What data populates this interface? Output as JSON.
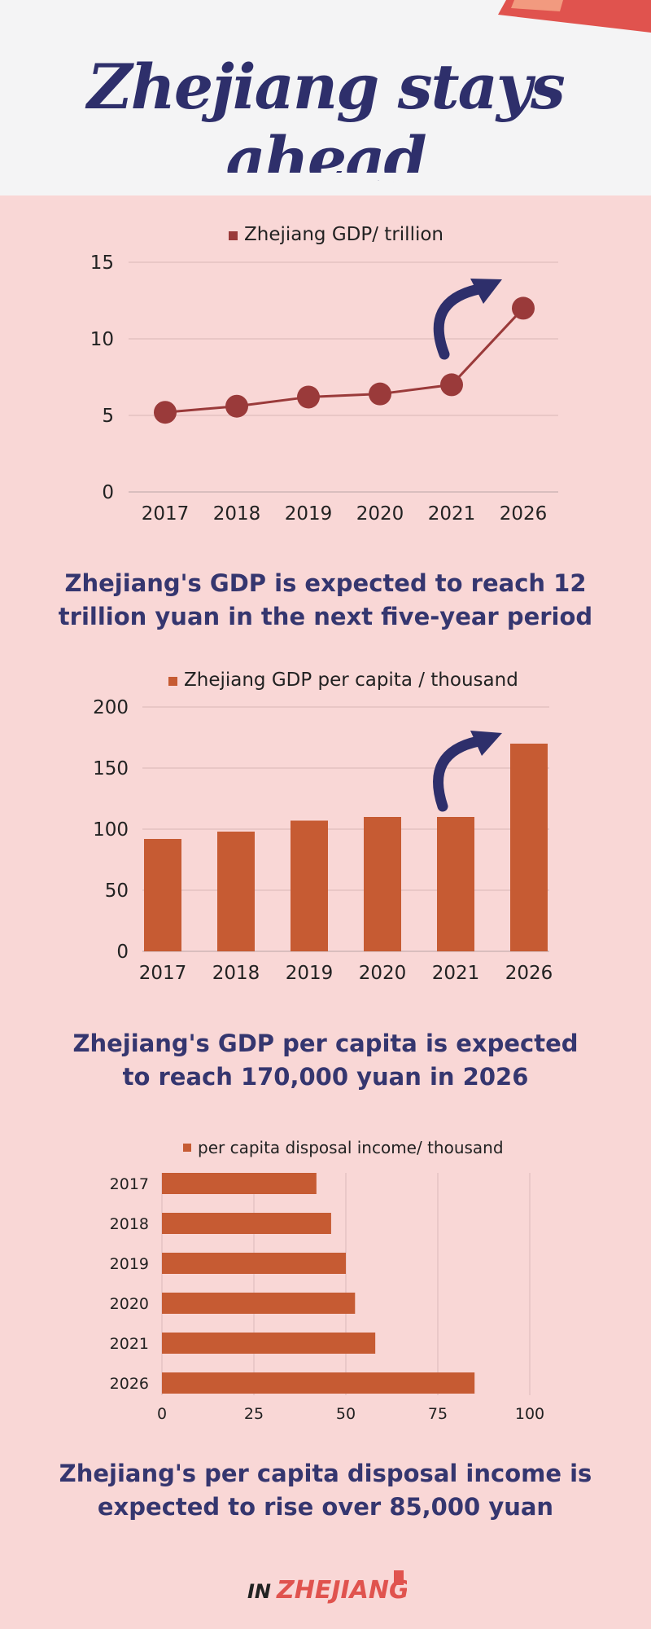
{
  "title": "Zhejiang stays ahead",
  "colors": {
    "header_bg": "#f4f4f5",
    "page_bg": "#f9d7d6",
    "title": "#2e2f6b",
    "line_series": "#9a3a3a",
    "bar_series": "#c65b33",
    "arrow": "#2e2f6b"
  },
  "chart_data": [
    {
      "type": "line",
      "legend": "Zhejiang GDP/ trillion",
      "categories": [
        "2017",
        "2018",
        "2019",
        "2020",
        "2021",
        "2026"
      ],
      "values": [
        5.2,
        5.6,
        6.2,
        6.4,
        7.0,
        12.0
      ],
      "yticks": [
        "0",
        "5",
        "10",
        "15"
      ],
      "ylim": [
        0,
        15
      ],
      "grid": true,
      "annotation": "arrow-up-icon"
    },
    {
      "type": "bar",
      "legend": "Zhejiang GDP per capita / thousand",
      "categories": [
        "2017",
        "2018",
        "2019",
        "2020",
        "2021",
        "2026"
      ],
      "values": [
        92,
        98,
        107,
        110,
        110,
        170
      ],
      "yticks": [
        "0",
        "50",
        "100",
        "150",
        "200"
      ],
      "ylim": [
        0,
        200
      ],
      "grid": true,
      "annotation": "arrow-up-icon"
    },
    {
      "type": "bar",
      "orientation": "horizontal",
      "legend": "per capita disposal income/ thousand",
      "categories": [
        "2017",
        "2018",
        "2019",
        "2020",
        "2021",
        "2026"
      ],
      "values": [
        42,
        46,
        50,
        52.5,
        58,
        85
      ],
      "xticks": [
        "0",
        "25",
        "50",
        "75",
        "100"
      ],
      "xlim": [
        0,
        100
      ],
      "grid": true
    }
  ],
  "captions": [
    [
      "Zhejiang's GDP is expected to reach 12",
      "trillion yuan in the next five-year period"
    ],
    [
      "Zhejiang's GDP per capita is expected",
      "to reach 170,000 yuan in 2026"
    ],
    [
      "Zhejiang's  per capita disposal income is",
      "expected to rise over 85,000 yuan"
    ]
  ],
  "footer": {
    "logo_prefix": "IN",
    "logo_main": "ZHEJIANG"
  }
}
